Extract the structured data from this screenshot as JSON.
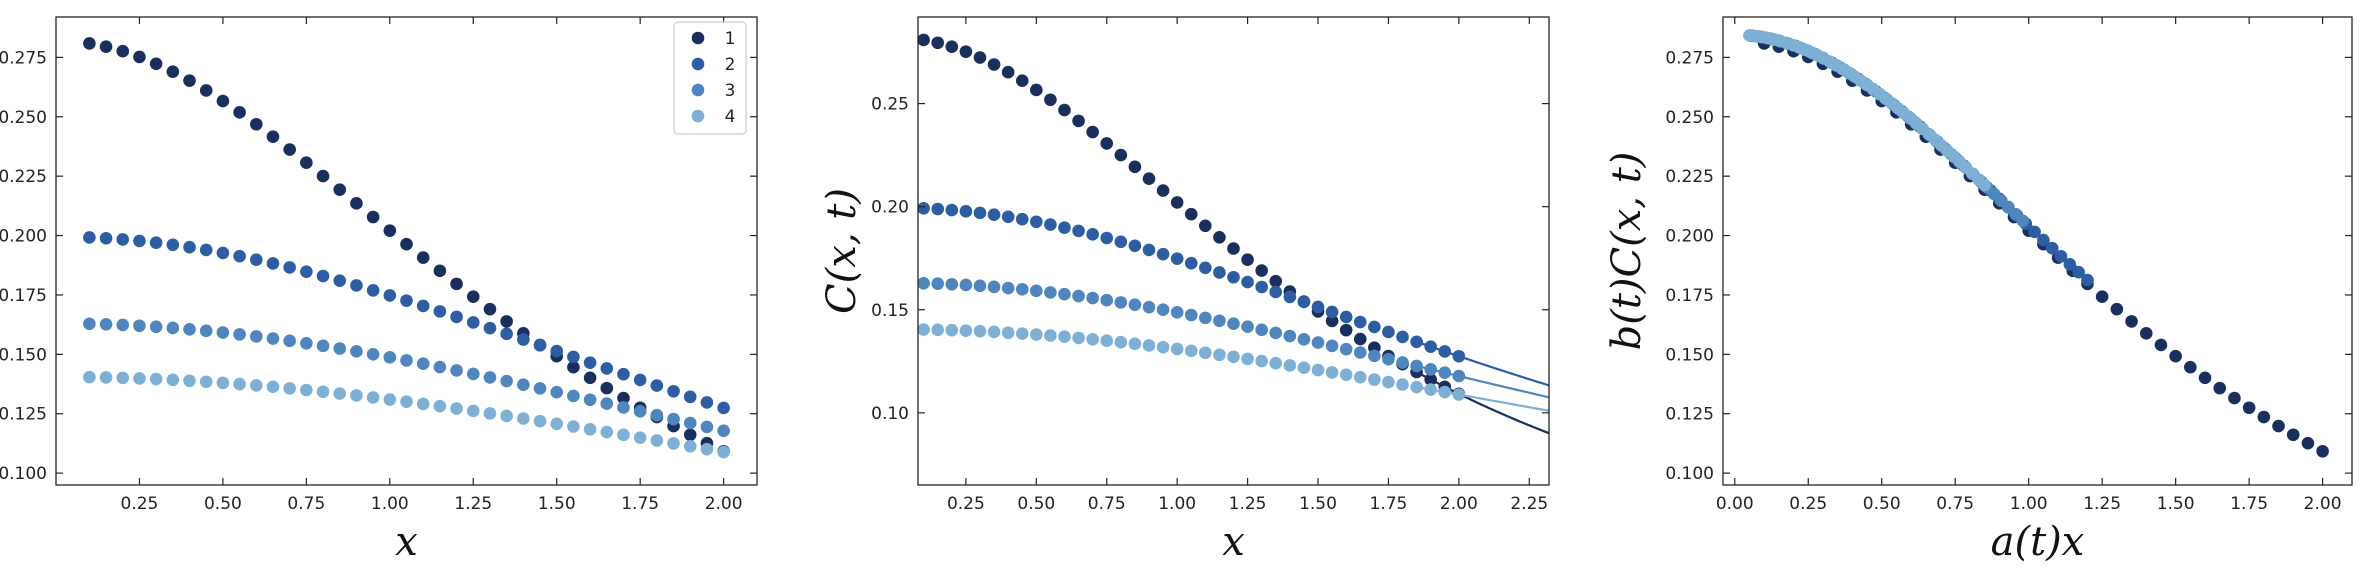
{
  "colors": [
    "#1a2f5e",
    "#2d5ea3",
    "#4f86bf",
    "#7eb0d6"
  ],
  "chart_data": [
    {
      "type": "scatter",
      "xlabel": "x",
      "ylabel": "C(x, t)",
      "xlim": [
        0.0,
        2.1
      ],
      "ylim": [
        0.095,
        0.292
      ],
      "xticks": [
        0.25,
        0.5,
        0.75,
        1.0,
        1.25,
        1.5,
        1.75,
        2.0
      ],
      "xtick_labels": [
        "0.25",
        "0.50",
        "0.75",
        "1.00",
        "1.25",
        "1.50",
        "1.75",
        "2.00"
      ],
      "yticks": [
        0.1,
        0.125,
        0.15,
        0.175,
        0.2,
        0.225,
        0.25,
        0.275
      ],
      "ytick_labels": [
        "0.100",
        "0.125",
        "0.150",
        "0.175",
        "0.200",
        "0.225",
        "0.250",
        "0.275"
      ],
      "legend": {
        "position": "top-right",
        "entries": [
          "1",
          "2",
          "3",
          "4"
        ]
      },
      "series": [
        {
          "name": "1",
          "model": {
            "c0": 0.282,
            "L": 1.59
          }
        },
        {
          "name": "2",
          "model": {
            "c0": 0.1995,
            "L": 2.66
          }
        },
        {
          "name": "3",
          "model": {
            "c0": 0.163,
            "L": 3.23
          }
        },
        {
          "name": "4",
          "model": {
            "c0": 0.1405,
            "L": 3.71
          }
        }
      ],
      "x_range": [
        0.1,
        2.0
      ],
      "n_points": 39
    },
    {
      "type": "scatter",
      "xlabel": "x",
      "ylabel": "C(x, t)",
      "xlim": [
        0.08,
        2.32
      ],
      "ylim": [
        0.065,
        0.292
      ],
      "xticks": [
        0.25,
        0.5,
        0.75,
        1.0,
        1.25,
        1.5,
        1.75,
        2.0,
        2.25
      ],
      "xtick_labels": [
        "0.25",
        "0.50",
        "0.75",
        "1.00",
        "1.25",
        "1.50",
        "1.75",
        "2.00",
        "2.25"
      ],
      "yticks": [
        0.1,
        0.15,
        0.2,
        0.25
      ],
      "ytick_labels": [
        "0.10",
        "0.15",
        "0.20",
        "0.25"
      ],
      "series": [
        {
          "name": "1",
          "model": {
            "c0": 0.282,
            "L": 1.59
          }
        },
        {
          "name": "2",
          "model": {
            "c0": 0.1995,
            "L": 2.66
          }
        },
        {
          "name": "3",
          "model": {
            "c0": 0.163,
            "L": 3.23
          }
        },
        {
          "name": "4",
          "model": {
            "c0": 0.1405,
            "L": 3.71
          }
        }
      ],
      "x_range": [
        0.1,
        2.0
      ],
      "fit_x_range": [
        1.85,
        2.32
      ],
      "n_points": 39
    },
    {
      "type": "scatter",
      "xlabel": "a(t)x",
      "ylabel": "b(t)C(x, t)",
      "xlim": [
        -0.04,
        2.1
      ],
      "ylim": [
        0.095,
        0.292
      ],
      "xticks": [
        0.0,
        0.25,
        0.5,
        0.75,
        1.0,
        1.25,
        1.5,
        1.75,
        2.0
      ],
      "xtick_labels": [
        "0.00",
        "0.25",
        "0.50",
        "0.75",
        "1.00",
        "1.25",
        "1.50",
        "1.75",
        "2.00"
      ],
      "yticks": [
        0.1,
        0.125,
        0.15,
        0.175,
        0.2,
        0.225,
        0.25,
        0.275
      ],
      "ytick_labels": [
        "0.100",
        "0.125",
        "0.150",
        "0.175",
        "0.200",
        "0.225",
        "0.250",
        "0.275"
      ],
      "series": [
        {
          "name": "1",
          "x_range": [
            0.1,
            2.0
          ],
          "model": {
            "c0": 0.282,
            "L": 1.59
          }
        },
        {
          "name": "2",
          "x_range": [
            0.06,
            1.2
          ],
          "model": {
            "c0": 0.2845,
            "L": 1.59
          }
        },
        {
          "name": "3",
          "x_range": [
            0.055,
            0.98
          ],
          "model": {
            "c0": 0.2845,
            "L": 1.59
          }
        },
        {
          "name": "4",
          "x_range": [
            0.05,
            0.85
          ],
          "model": {
            "c0": 0.2845,
            "L": 1.59
          }
        }
      ],
      "n_points": 39
    }
  ]
}
